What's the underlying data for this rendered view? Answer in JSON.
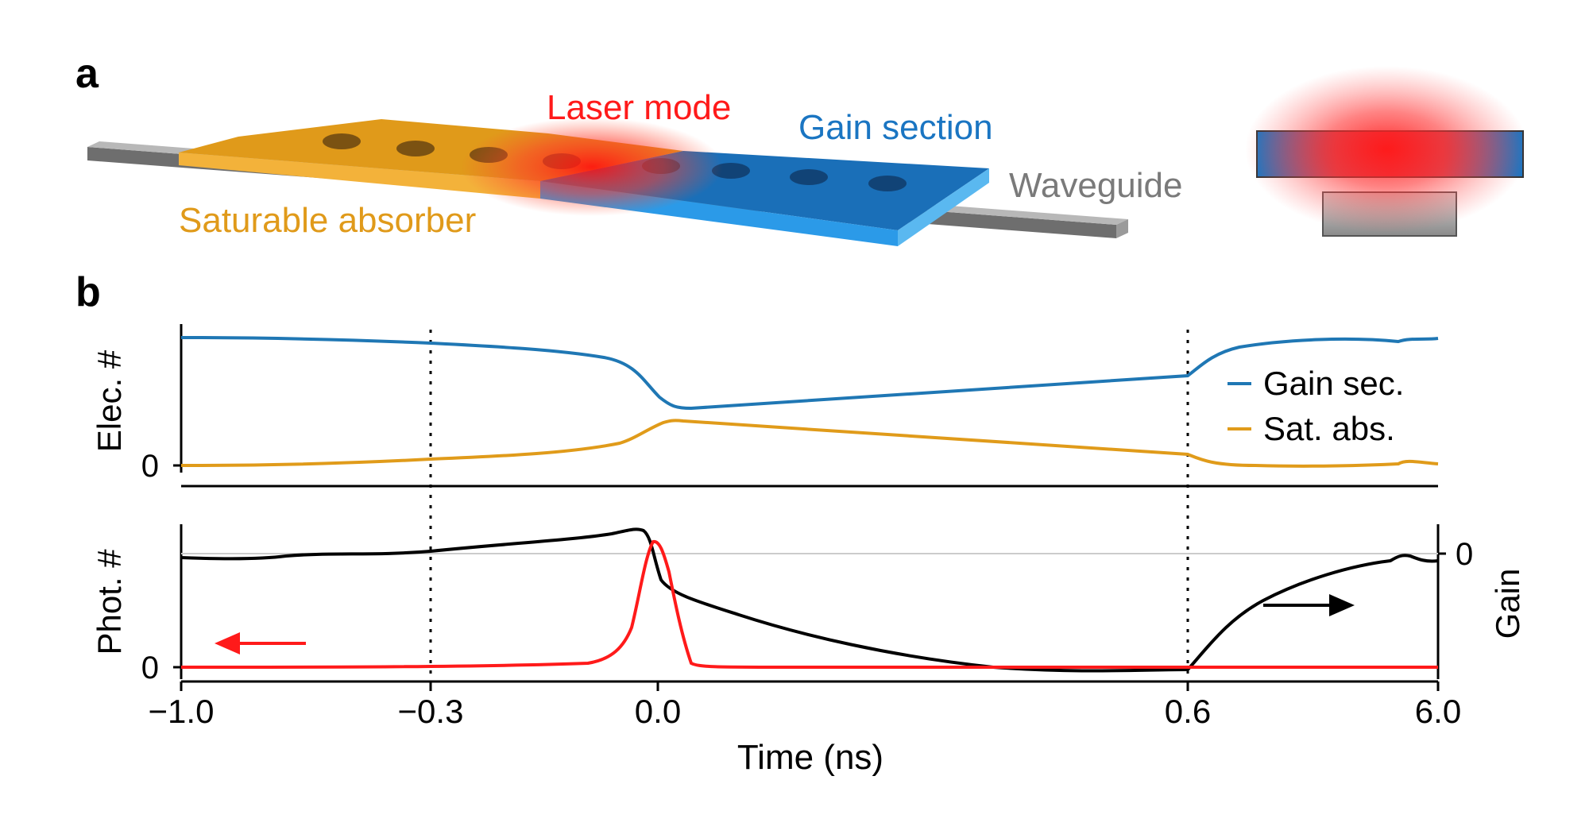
{
  "panel_a": {
    "label": "a",
    "laser_mode": "Laser mode",
    "gain_section": "Gain section",
    "waveguide": "Waveguide",
    "saturable_absorber": "Saturable absorber"
  },
  "panel_b": {
    "label": "b",
    "x_label": "Time (ns)",
    "x_ticks": [
      "−1.0",
      "−0.3",
      "0.0",
      "0.6",
      "6.0"
    ],
    "dashed_markers_ns": [
      -0.3,
      0.6
    ],
    "top": {
      "y_label": "Elec. #",
      "y_zero": "0",
      "legend": [
        {
          "name": "Gain sec.",
          "color": "#1f77b4"
        },
        {
          "name": "Sat. abs.",
          "color": "#e09b1a"
        }
      ]
    },
    "bottom": {
      "y_label": "Phot. #",
      "y_zero": "0",
      "y2_label": "Gain",
      "y2_zero": "0",
      "photon_color": "#ff1a1a",
      "gain_color": "#000000"
    }
  },
  "colors": {
    "absorber": "#e8a12a",
    "gain": "#1a75c2",
    "laser": "#ff1a1a",
    "waveguide": "#8a8a8a"
  }
}
